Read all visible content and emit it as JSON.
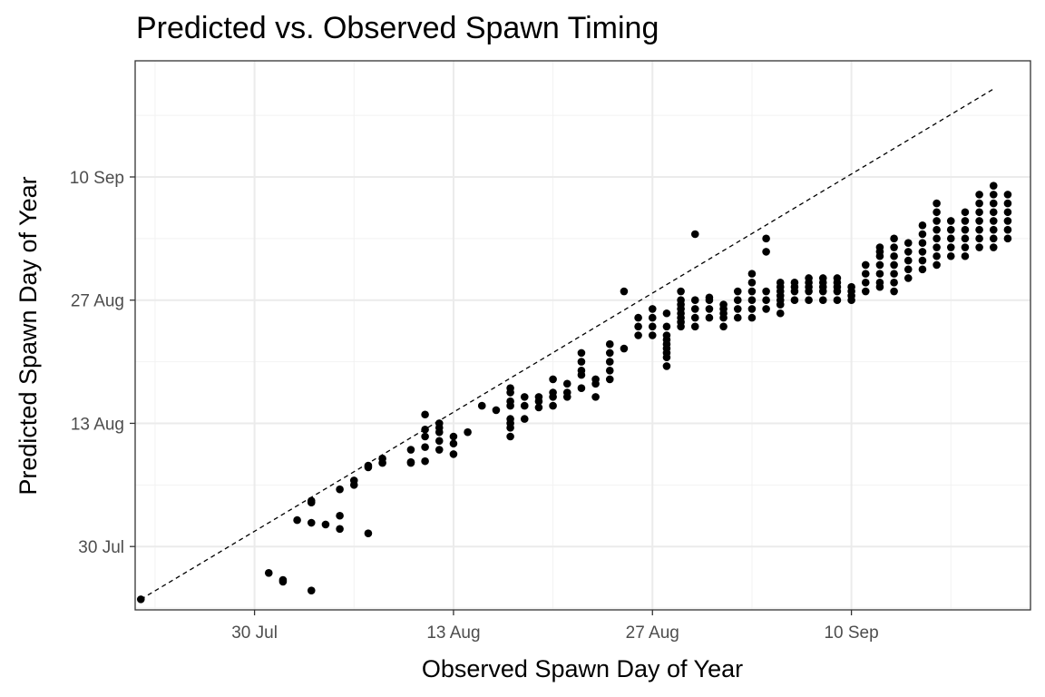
{
  "chart_data": {
    "type": "scatter",
    "title": "Predicted vs. Observed Spawn Timing",
    "xlabel": "Observed Spawn Day of Year",
    "ylabel": "Predicted Spawn Day of Year",
    "x_ticks": [
      {
        "label": "30 Jul",
        "value": 211
      },
      {
        "label": "13 Aug",
        "value": 225
      },
      {
        "label": "27 Aug",
        "value": 239
      },
      {
        "label": "10 Sep",
        "value": 253
      }
    ],
    "y_ticks": [
      {
        "label": "30 Jul",
        "value": 211
      },
      {
        "label": "13 Aug",
        "value": 225
      },
      {
        "label": "27 Aug",
        "value": 239
      },
      {
        "label": "10 Sep",
        "value": 253
      }
    ],
    "xlim": [
      202.6,
      265.6
    ],
    "ylim": [
      203.8,
      266.2
    ],
    "grid": true,
    "reference_line": {
      "style": "dashed",
      "from": [
        203,
        205
      ],
      "to": [
        263,
        263
      ]
    },
    "series": [
      {
        "points": [
          [
            203,
            205
          ],
          [
            212,
            208
          ],
          [
            213,
            207
          ],
          [
            213,
            207.2
          ],
          [
            215,
            206
          ],
          [
            214,
            214
          ],
          [
            215,
            213.7
          ],
          [
            215,
            216
          ],
          [
            215,
            216.2
          ],
          [
            216,
            213.5
          ],
          [
            217,
            213
          ],
          [
            217,
            214.5
          ],
          [
            217,
            217.5
          ],
          [
            218,
            218
          ],
          [
            218,
            218.5
          ],
          [
            219,
            212.5
          ],
          [
            219,
            220
          ],
          [
            219,
            220.2
          ],
          [
            220,
            221
          ],
          [
            220,
            220.5
          ],
          [
            222,
            220.5
          ],
          [
            222,
            220.6
          ],
          [
            222,
            222
          ],
          [
            223,
            220.7
          ],
          [
            223,
            222.3
          ],
          [
            223,
            223.5
          ],
          [
            223,
            224.3
          ],
          [
            223,
            226
          ],
          [
            224,
            222
          ],
          [
            224,
            223
          ],
          [
            224,
            224
          ],
          [
            224,
            224.5
          ],
          [
            224,
            225
          ],
          [
            225,
            221.5
          ],
          [
            225,
            222.7
          ],
          [
            225,
            223.5
          ],
          [
            226,
            224
          ],
          [
            227,
            227
          ],
          [
            228,
            226.5
          ],
          [
            229,
            223.5
          ],
          [
            229,
            224.5
          ],
          [
            229,
            225
          ],
          [
            229,
            225.5
          ],
          [
            229,
            227
          ],
          [
            229,
            227.5
          ],
          [
            229,
            228.5
          ],
          [
            229,
            229
          ],
          [
            230,
            225.5
          ],
          [
            230,
            227
          ],
          [
            230,
            228
          ],
          [
            231,
            226.8
          ],
          [
            231,
            227.5
          ],
          [
            231,
            228
          ],
          [
            232,
            227
          ],
          [
            232,
            228
          ],
          [
            232,
            228.5
          ],
          [
            232,
            230
          ],
          [
            233,
            228
          ],
          [
            233,
            228.5
          ],
          [
            233,
            229.5
          ],
          [
            234,
            229
          ],
          [
            234,
            230.5
          ],
          [
            234,
            231
          ],
          [
            234,
            232
          ],
          [
            234,
            233
          ],
          [
            235,
            228
          ],
          [
            235,
            229.5
          ],
          [
            235,
            230
          ],
          [
            236,
            230
          ],
          [
            236,
            231
          ],
          [
            236,
            232
          ],
          [
            236,
            233
          ],
          [
            236,
            234
          ],
          [
            237,
            233.5
          ],
          [
            237,
            240
          ],
          [
            238,
            235
          ],
          [
            238,
            236
          ],
          [
            238,
            237
          ],
          [
            239,
            235
          ],
          [
            239,
            236
          ],
          [
            239,
            237
          ],
          [
            239,
            238
          ],
          [
            240,
            231.5
          ],
          [
            240,
            232.5
          ],
          [
            240,
            233
          ],
          [
            240,
            233.5
          ],
          [
            240,
            234
          ],
          [
            240,
            234.5
          ],
          [
            240,
            235
          ],
          [
            240,
            236
          ],
          [
            240,
            237.5
          ],
          [
            241,
            236
          ],
          [
            241,
            236.5
          ],
          [
            241,
            237
          ],
          [
            241,
            237.5
          ],
          [
            241,
            238
          ],
          [
            241,
            238.5
          ],
          [
            241,
            239
          ],
          [
            241,
            240
          ],
          [
            242,
            236
          ],
          [
            242,
            237
          ],
          [
            242,
            238
          ],
          [
            242,
            239
          ],
          [
            242,
            246.5
          ],
          [
            243,
            237
          ],
          [
            243,
            238
          ],
          [
            243,
            239
          ],
          [
            243,
            239.3
          ],
          [
            244,
            236
          ],
          [
            244,
            237
          ],
          [
            244,
            237.5
          ],
          [
            244,
            238
          ],
          [
            244,
            238.5
          ],
          [
            245,
            237
          ],
          [
            245,
            238
          ],
          [
            245,
            239
          ],
          [
            245,
            240
          ],
          [
            246,
            237
          ],
          [
            246,
            238
          ],
          [
            246,
            239
          ],
          [
            246,
            240
          ],
          [
            246,
            241
          ],
          [
            246,
            242
          ],
          [
            247,
            238
          ],
          [
            247,
            239
          ],
          [
            247,
            240
          ],
          [
            247,
            246
          ],
          [
            247,
            244.5
          ],
          [
            248,
            237.5
          ],
          [
            248,
            238.5
          ],
          [
            248,
            239
          ],
          [
            248,
            239.5
          ],
          [
            248,
            240
          ],
          [
            248,
            240.5
          ],
          [
            248,
            241
          ],
          [
            249,
            239
          ],
          [
            249,
            240
          ],
          [
            249,
            240.5
          ],
          [
            249,
            241
          ],
          [
            250,
            239
          ],
          [
            250,
            240
          ],
          [
            250,
            240.5
          ],
          [
            250,
            241
          ],
          [
            250,
            241.5
          ],
          [
            251,
            239
          ],
          [
            251,
            240
          ],
          [
            251,
            240.5
          ],
          [
            251,
            241
          ],
          [
            251,
            241.5
          ],
          [
            252,
            239
          ],
          [
            252,
            240
          ],
          [
            252,
            240.5
          ],
          [
            252,
            241
          ],
          [
            252,
            241.5
          ],
          [
            253,
            239
          ],
          [
            253,
            239.5
          ],
          [
            253,
            240
          ],
          [
            253,
            240.5
          ],
          [
            254,
            240
          ],
          [
            254,
            241
          ],
          [
            254,
            242
          ],
          [
            254,
            243
          ],
          [
            255,
            240.5
          ],
          [
            255,
            241
          ],
          [
            255,
            242
          ],
          [
            255,
            243
          ],
          [
            255,
            244
          ],
          [
            255,
            244.5
          ],
          [
            255,
            245
          ],
          [
            256,
            240
          ],
          [
            256,
            241
          ],
          [
            256,
            242
          ],
          [
            256,
            243
          ],
          [
            256,
            244
          ],
          [
            256,
            245
          ],
          [
            256,
            246
          ],
          [
            257,
            241.5
          ],
          [
            257,
            242.5
          ],
          [
            257,
            243.5
          ],
          [
            257,
            244.5
          ],
          [
            257,
            245.5
          ],
          [
            258,
            242.5
          ],
          [
            258,
            243.5
          ],
          [
            258,
            244.5
          ],
          [
            258,
            245.5
          ],
          [
            258,
            246.5
          ],
          [
            258,
            247.5
          ],
          [
            259,
            243
          ],
          [
            259,
            244
          ],
          [
            259,
            245
          ],
          [
            259,
            246
          ],
          [
            259,
            247
          ],
          [
            259,
            248
          ],
          [
            259,
            249
          ],
          [
            259,
            250
          ],
          [
            260,
            244
          ],
          [
            260,
            245
          ],
          [
            260,
            246
          ],
          [
            260,
            247
          ],
          [
            260,
            248
          ],
          [
            261,
            244
          ],
          [
            261,
            245
          ],
          [
            261,
            246
          ],
          [
            261,
            247
          ],
          [
            261,
            248
          ],
          [
            261,
            249
          ],
          [
            262,
            245
          ],
          [
            262,
            246
          ],
          [
            262,
            247
          ],
          [
            262,
            248
          ],
          [
            262,
            249
          ],
          [
            262,
            250
          ],
          [
            262,
            251
          ],
          [
            263,
            245
          ],
          [
            263,
            246
          ],
          [
            263,
            247
          ],
          [
            263,
            248
          ],
          [
            263,
            249
          ],
          [
            263,
            250
          ],
          [
            263,
            251
          ],
          [
            263,
            252
          ],
          [
            264,
            246
          ],
          [
            264,
            247
          ],
          [
            264,
            248
          ],
          [
            264,
            249
          ],
          [
            264,
            250
          ],
          [
            264,
            251
          ]
        ]
      }
    ]
  }
}
